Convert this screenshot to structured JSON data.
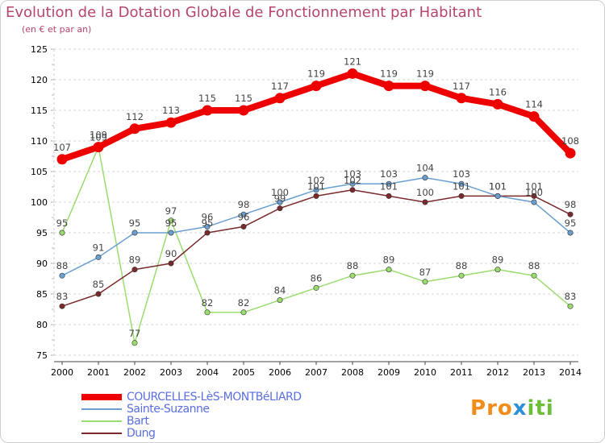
{
  "header": {
    "title": "Evolution de la Dotation Globale de Fonctionnement par Habitant",
    "subtitle": "(en € et par an)"
  },
  "chart_data": {
    "type": "line",
    "title": "Evolution de la Dotation Globale de Fonctionnement par Habitant",
    "subtitle": "(en € et par an)",
    "xlabel": "",
    "ylabel": "",
    "ylim": [
      75,
      125
    ],
    "yticks": [
      75,
      80,
      85,
      90,
      95,
      100,
      105,
      110,
      115,
      120,
      125
    ],
    "grid": "horizontal dashed",
    "legend_position": "bottom",
    "x": [
      "2000",
      "2001",
      "2002",
      "2003",
      "2004",
      "2005",
      "2006",
      "2007",
      "2008",
      "2009",
      "2010",
      "2011",
      "2012",
      "2013",
      "2014"
    ],
    "series": [
      {
        "name": "COURCELLES-LèS-MONTBéLIARD",
        "color": "#ee0000",
        "values": [
          107,
          109,
          112,
          113,
          115,
          115,
          117,
          119,
          121,
          119,
          119,
          117,
          116,
          114,
          108
        ],
        "labels": [
          "107",
          "109",
          "112",
          "113",
          "115",
          "115",
          "117",
          "119",
          "121",
          "119",
          "119",
          "117",
          "116",
          "114",
          "108"
        ]
      },
      {
        "name": "Sainte-Suzanne",
        "color": "#6a9fd0",
        "values": [
          88,
          91,
          95,
          95,
          96,
          98,
          100,
          102,
          103,
          103,
          104,
          103,
          101,
          100,
          95
        ],
        "labels": [
          "88",
          "91",
          "95",
          "95",
          "96",
          "98",
          "100",
          "102",
          "103",
          "103",
          "104",
          "103",
          "101",
          "100",
          "95"
        ]
      },
      {
        "name": "Bart",
        "color": "#9bdc6e",
        "values": [
          95,
          109,
          77,
          97,
          82,
          82,
          84,
          86,
          88,
          89,
          87,
          88,
          89,
          88,
          83
        ],
        "labels": [
          "95",
          "109",
          "77",
          "97",
          "82",
          "82",
          "84",
          "86",
          "88",
          "89",
          "87",
          "88",
          "89",
          "88",
          "83"
        ]
      },
      {
        "name": "Dung",
        "color": "#7a2a2a",
        "values": [
          83,
          85,
          89,
          90,
          95,
          96,
          99,
          101,
          102,
          101,
          100,
          101,
          101,
          101,
          98
        ],
        "labels": [
          "83",
          "85",
          "89",
          "90",
          "95",
          "96",
          "99",
          "101",
          "102",
          "101",
          "100",
          "101",
          "101",
          "101",
          "98"
        ]
      }
    ]
  },
  "legend": {
    "items": [
      {
        "label": "COURCELLES-LèS-MONTBéLIARD",
        "color": "#ee0000"
      },
      {
        "label": "Sainte-Suzanne",
        "color": "#6a9fd0"
      },
      {
        "label": "Bart",
        "color": "#9bdc6e"
      },
      {
        "label": "Dung",
        "color": "#7a2a2a"
      }
    ],
    "text_color": "#5a6ee0"
  },
  "logo": {
    "letters": [
      "P",
      "r",
      "o",
      "x",
      "i",
      "t",
      "i"
    ],
    "colors": [
      "#f28c1a",
      "#f28c1a",
      "#f28c1a",
      "#2b90d9",
      "#6cbf3a",
      "#6cbf3a",
      "#6cbf3a"
    ]
  }
}
